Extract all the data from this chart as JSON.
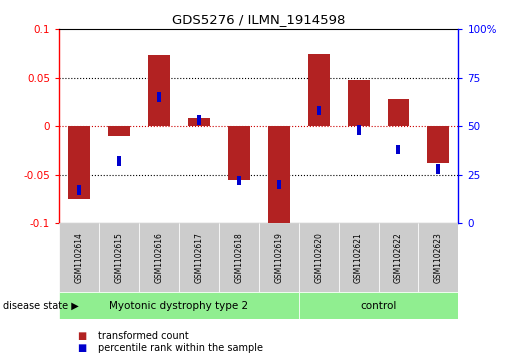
{
  "title": "GDS5276 / ILMN_1914598",
  "samples": [
    "GSM1102614",
    "GSM1102615",
    "GSM1102616",
    "GSM1102617",
    "GSM1102618",
    "GSM1102619",
    "GSM1102620",
    "GSM1102621",
    "GSM1102622",
    "GSM1102623"
  ],
  "red_values": [
    -0.075,
    -0.01,
    0.073,
    0.008,
    -0.055,
    -0.103,
    0.074,
    0.048,
    0.028,
    -0.038
  ],
  "blue_values": [
    17,
    32,
    65,
    53,
    22,
    20,
    58,
    48,
    38,
    28
  ],
  "ylim_left": [
    -0.1,
    0.1
  ],
  "ylim_right": [
    0,
    100
  ],
  "yticks_left": [
    -0.1,
    -0.05,
    0.0,
    0.05,
    0.1
  ],
  "yticks_right": [
    0,
    25,
    50,
    75,
    100
  ],
  "bar_color_red": "#B22222",
  "bar_color_blue": "#0000CC",
  "bar_width": 0.55,
  "bg_sample_box": "#cccccc",
  "disease_group1_label": "Myotonic dystrophy type 2",
  "disease_group2_label": "control",
  "disease_group_color": "#90EE90",
  "disease_state_label": "disease state",
  "legend_red": "transformed count",
  "legend_blue": "percentile rank within the sample",
  "n_group1": 6,
  "n_group2": 4
}
